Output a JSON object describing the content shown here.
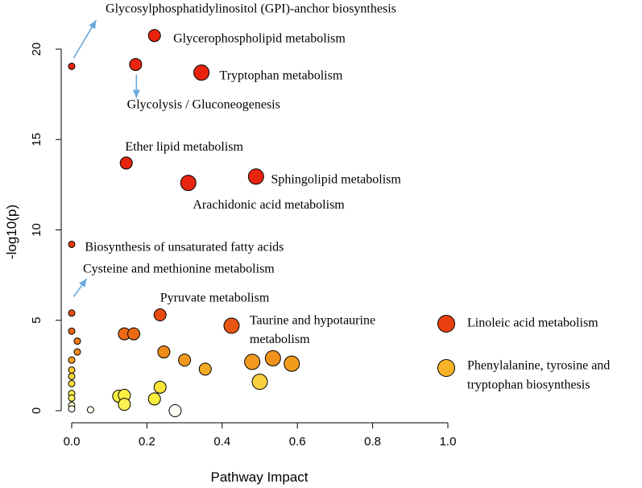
{
  "chart_data": {
    "type": "scatter",
    "xlabel": "Pathway Impact",
    "ylabel": "-log10(p)",
    "xlim": [
      0,
      1
    ],
    "ylim": [
      0,
      20
    ],
    "x_ticks": [
      0.0,
      0.2,
      0.4,
      0.6,
      0.8,
      1.0
    ],
    "x_tick_labels": [
      "0.0",
      "0.2",
      "0.4",
      "0.6",
      "0.8",
      "1.0"
    ],
    "y_ticks": [
      0,
      5,
      10,
      15,
      20
    ],
    "y_tick_labels": [
      "0",
      "5",
      "10",
      "15",
      "20"
    ],
    "points": [
      {
        "x": 0.0,
        "y": 19.05,
        "size": 1,
        "color": "#e8240f"
      },
      {
        "x": 0.22,
        "y": 20.75,
        "size": 2,
        "color": "#e8240f"
      },
      {
        "x": 0.17,
        "y": 19.15,
        "size": 2,
        "color": "#e8240f"
      },
      {
        "x": 0.345,
        "y": 18.7,
        "size": 3,
        "color": "#e8240f"
      },
      {
        "x": 0.145,
        "y": 13.7,
        "size": 2,
        "color": "#e8240f"
      },
      {
        "x": 0.31,
        "y": 12.6,
        "size": 3,
        "color": "#e8260f"
      },
      {
        "x": 0.49,
        "y": 12.95,
        "size": 3,
        "color": "#e8260f"
      },
      {
        "x": 0.0,
        "y": 9.2,
        "size": 1,
        "color": "#e83a10"
      },
      {
        "x": 0.0,
        "y": 5.4,
        "size": 1,
        "color": "#e84f12"
      },
      {
        "x": 0.0,
        "y": 4.4,
        "size": 1,
        "color": "#e86414"
      },
      {
        "x": 0.015,
        "y": 3.85,
        "size": 1,
        "color": "#f07a18"
      },
      {
        "x": 0.015,
        "y": 3.25,
        "size": 1,
        "color": "#f08a1a"
      },
      {
        "x": 0.0,
        "y": 2.8,
        "size": 1,
        "color": "#f5a020"
      },
      {
        "x": 0.0,
        "y": 2.25,
        "size": 1,
        "color": "#f8c830"
      },
      {
        "x": 0.0,
        "y": 1.9,
        "size": 1,
        "color": "#f8d040"
      },
      {
        "x": 0.0,
        "y": 1.5,
        "size": 1,
        "color": "#f8e040"
      },
      {
        "x": 0.0,
        "y": 0.95,
        "size": 1,
        "color": "#fbee50"
      },
      {
        "x": 0.0,
        "y": 0.7,
        "size": 1,
        "color": "#fbf060"
      },
      {
        "x": 0.0,
        "y": 0.3,
        "size": 1,
        "color": "#fcf8c0"
      },
      {
        "x": 0.0,
        "y": 0.1,
        "size": 1,
        "color": "#fefdf0"
      },
      {
        "x": 0.235,
        "y": 5.3,
        "size": 2,
        "color": "#e84a12"
      },
      {
        "x": 0.425,
        "y": 4.7,
        "size": 3,
        "color": "#e85512"
      },
      {
        "x": 0.14,
        "y": 4.25,
        "size": 2,
        "color": "#ed6a15"
      },
      {
        "x": 0.165,
        "y": 4.25,
        "size": 2,
        "color": "#ed6a15"
      },
      {
        "x": 0.245,
        "y": 3.25,
        "size": 2,
        "color": "#f08c1a"
      },
      {
        "x": 0.3,
        "y": 2.8,
        "size": 2,
        "color": "#f29a1e"
      },
      {
        "x": 0.355,
        "y": 2.3,
        "size": 2,
        "color": "#f5aa22"
      },
      {
        "x": 0.48,
        "y": 2.7,
        "size": 3,
        "color": "#f29a1e"
      },
      {
        "x": 0.535,
        "y": 2.9,
        "size": 3,
        "color": "#f0921c"
      },
      {
        "x": 0.585,
        "y": 2.6,
        "size": 3,
        "color": "#f29c1e"
      },
      {
        "x": 0.5,
        "y": 1.6,
        "size": 3,
        "color": "#f8d040"
      },
      {
        "x": 0.235,
        "y": 1.3,
        "size": 2,
        "color": "#f8e438"
      },
      {
        "x": 0.22,
        "y": 0.65,
        "size": 2,
        "color": "#fbf040"
      },
      {
        "x": 0.125,
        "y": 0.8,
        "size": 2,
        "color": "#fbf040"
      },
      {
        "x": 0.14,
        "y": 0.85,
        "size": 2,
        "color": "#fbf040"
      },
      {
        "x": 0.14,
        "y": 0.35,
        "size": 2,
        "color": "#fbf050"
      },
      {
        "x": 0.05,
        "y": 0.05,
        "size": 1,
        "color": "#fffff0"
      },
      {
        "x": 0.275,
        "y": 0.0,
        "size": 2,
        "color": "#fffff5"
      }
    ],
    "annotations": [
      {
        "text": "Glycosylphosphatidylinositol (GPI)-anchor biosynthesis",
        "x": 0.09,
        "y": 22.2,
        "align": "start"
      },
      {
        "text": "Glycerophospholipid metabolism",
        "x": 0.27,
        "y": 20.55,
        "align": "start"
      },
      {
        "text": "Tryptophan metabolism",
        "x": 0.393,
        "y": 18.5,
        "align": "start"
      },
      {
        "text": "Glycolysis / Gluconeogenesis",
        "x": 0.147,
        "y": 16.9,
        "align": "start"
      },
      {
        "text": "Ether lipid metabolism",
        "x": 0.142,
        "y": 14.55,
        "align": "start"
      },
      {
        "text": "Sphingolipid metabolism",
        "x": 0.53,
        "y": 12.75,
        "align": "start"
      },
      {
        "text": "Arachidonic acid metabolism",
        "x": 0.322,
        "y": 11.35,
        "align": "start"
      },
      {
        "text": "Biosynthesis of unsaturated fatty acids",
        "x": 0.035,
        "y": 9.0,
        "align": "start"
      },
      {
        "text": "Cysteine and methionine metabolism",
        "x": 0.03,
        "y": 7.8,
        "align": "start"
      },
      {
        "text": "Pyruvate metabolism",
        "x": 0.235,
        "y": 6.2,
        "align": "start"
      },
      {
        "text": "Taurine and hypotaurine",
        "x": 0.473,
        "y": 4.95,
        "align": "start"
      },
      {
        "text": "metabolism",
        "x": 0.473,
        "y": 3.9,
        "align": "start"
      }
    ],
    "arrows": [
      {
        "from": [
          0.005,
          19.5
        ],
        "to": [
          0.065,
          21.6
        ]
      },
      {
        "from": [
          0.172,
          18.6
        ],
        "to": [
          0.172,
          17.3
        ]
      },
      {
        "from": [
          0.005,
          6.3
        ],
        "to": [
          0.04,
          7.3
        ]
      }
    ],
    "legend": {
      "position": "right",
      "entries": [
        {
          "label": "Linoleic acid metabolism",
          "color": "#e8400f",
          "size": 3
        },
        {
          "label": "Phenylalanine, tyrosine and",
          "label2": "tryptophan biosynthesis",
          "color": "#f8b22a",
          "size": 3
        }
      ]
    },
    "colors": {
      "arrow": "#6aa8dc",
      "stroke": "#000000"
    }
  }
}
